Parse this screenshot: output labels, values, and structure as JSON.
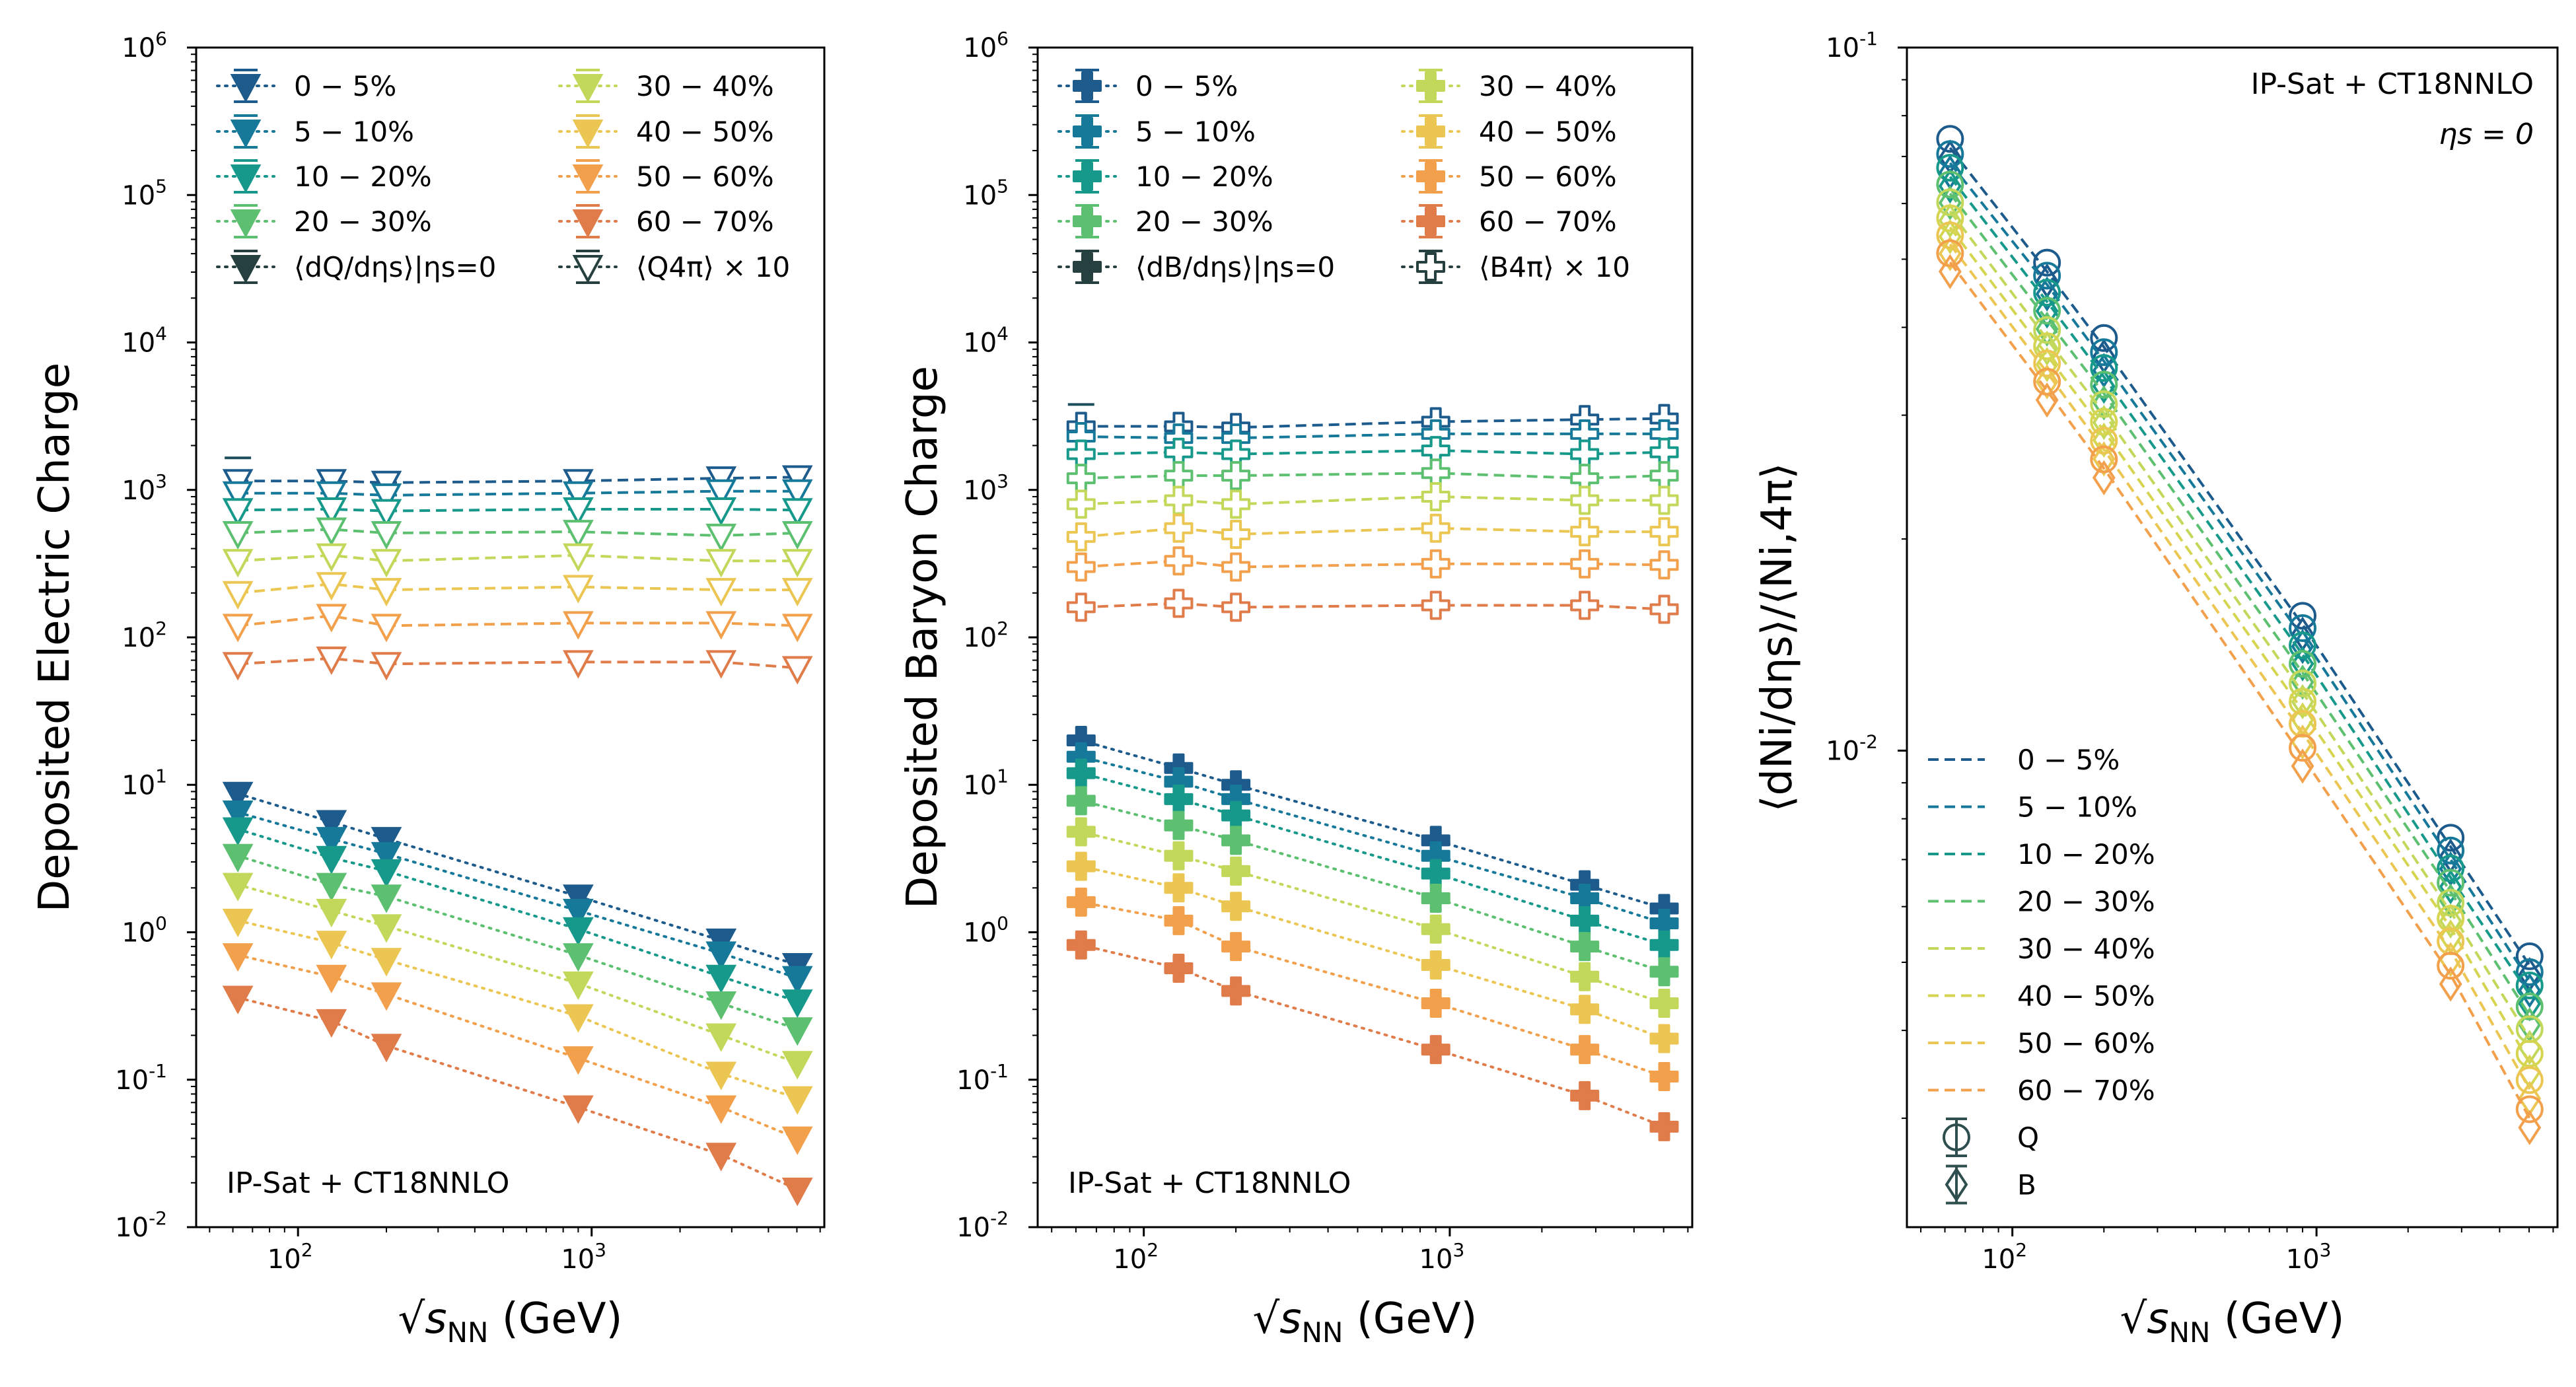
{
  "chart_data": [
    {
      "type": "line",
      "panel": "left",
      "ylabel": "Deposited Electric Charge",
      "xlabel": "√sNN (GeV)",
      "xscale": "log",
      "yscale": "log",
      "xlim": [
        45,
        6200
      ],
      "ylim": [
        0.01,
        1000000
      ],
      "annotation": "IP-Sat + CT18NNLO",
      "legend_position": "top",
      "x": [
        62.4,
        130,
        200,
        900,
        2760,
        5020
      ],
      "legend_labels": [
        "0 − 5%",
        "5 − 10%",
        "10 − 20%",
        "20 − 30%",
        "30 − 40%",
        "40 − 50%",
        "50 − 60%",
        "60 − 70%",
        "⟨dQ/dηs⟩|ηs=0",
        "⟨Q4π⟩ × 10"
      ],
      "series": [
        {
          "name": "0 − 5%",
          "color": "#1d5b8c",
          "midrap": [
            8.7,
            5.6,
            4.3,
            1.75,
            0.88,
            0.6
          ],
          "total_x10": [
            1150,
            1150,
            1120,
            1150,
            1200,
            1220
          ]
        },
        {
          "name": "5 − 10%",
          "color": "#17799a",
          "midrap": [
            6.5,
            4.3,
            3.4,
            1.4,
            0.72,
            0.49
          ],
          "total_x10": [
            950,
            950,
            920,
            950,
            980,
            980
          ]
        },
        {
          "name": "10 − 20%",
          "color": "#16998b",
          "midrap": [
            5.0,
            3.2,
            2.6,
            1.05,
            0.5,
            0.34
          ],
          "total_x10": [
            730,
            740,
            720,
            740,
            740,
            730
          ]
        },
        {
          "name": "20 − 30%",
          "color": "#5dc071",
          "midrap": [
            3.3,
            2.1,
            1.75,
            0.7,
            0.33,
            0.22
          ],
          "total_x10": [
            510,
            540,
            510,
            520,
            490,
            510
          ]
        },
        {
          "name": "30 − 40%",
          "color": "#c2d85a",
          "midrap": [
            2.1,
            1.4,
            1.1,
            0.45,
            0.2,
            0.13
          ],
          "total_x10": [
            330,
            360,
            330,
            360,
            330,
            330
          ]
        },
        {
          "name": "40 − 50%",
          "color": "#ecc652",
          "midrap": [
            1.2,
            0.85,
            0.65,
            0.27,
            0.11,
            0.075
          ],
          "total_x10": [
            200,
            230,
            210,
            220,
            210,
            210
          ]
        },
        {
          "name": "50 − 60%",
          "color": "#f2a04c",
          "midrap": [
            0.7,
            0.5,
            0.38,
            0.14,
            0.065,
            0.04
          ],
          "total_x10": [
            120,
            140,
            120,
            125,
            125,
            120
          ]
        },
        {
          "name": "60 − 70%",
          "color": "#e07b4a",
          "midrap": [
            0.36,
            0.25,
            0.17,
            0.065,
            0.031,
            0.018
          ],
          "total_x10": [
            66,
            72,
            66,
            68,
            68,
            62
          ]
        }
      ]
    },
    {
      "type": "line",
      "panel": "middle",
      "ylabel": "Deposited Baryon Charge",
      "xlabel": "√sNN (GeV)",
      "xscale": "log",
      "yscale": "log",
      "xlim": [
        45,
        6200
      ],
      "ylim": [
        0.01,
        1000000
      ],
      "annotation": "IP-Sat + CT18NNLO",
      "legend_position": "top",
      "x": [
        62.4,
        130,
        200,
        900,
        2760,
        5020
      ],
      "legend_labels": [
        "0 − 5%",
        "5 − 10%",
        "10 − 20%",
        "20 − 30%",
        "30 − 40%",
        "40 − 50%",
        "50 − 60%",
        "60 − 70%",
        "⟨dB/dηs⟩|ηs=0",
        "⟨B4π⟩ × 10"
      ],
      "series": [
        {
          "name": "0 − 5%",
          "color": "#1d5b8c",
          "midrap": [
            20,
            13,
            10,
            4.2,
            2.1,
            1.45
          ],
          "total_x10": [
            2700,
            2700,
            2650,
            2900,
            3000,
            3050
          ]
        },
        {
          "name": "5 − 10%",
          "color": "#17799a",
          "midrap": [
            15.5,
            10.5,
            8,
            3.3,
            1.7,
            1.15
          ],
          "total_x10": [
            2300,
            2250,
            2250,
            2400,
            2400,
            2400
          ]
        },
        {
          "name": "10 − 20%",
          "color": "#16998b",
          "midrap": [
            12,
            8,
            6.2,
            2.5,
            1.2,
            0.82
          ],
          "total_x10": [
            1750,
            1800,
            1750,
            1850,
            1750,
            1800
          ]
        },
        {
          "name": "20 − 30%",
          "color": "#5dc071",
          "midrap": [
            7.8,
            5.3,
            4.2,
            1.7,
            0.8,
            0.54
          ],
          "total_x10": [
            1200,
            1250,
            1250,
            1300,
            1200,
            1250
          ]
        },
        {
          "name": "30 − 40%",
          "color": "#c2d85a",
          "midrap": [
            4.8,
            3.3,
            2.6,
            1.05,
            0.5,
            0.33
          ],
          "total_x10": [
            800,
            850,
            800,
            900,
            850,
            850
          ]
        },
        {
          "name": "40 − 50%",
          "color": "#ecc652",
          "midrap": [
            2.8,
            2.0,
            1.5,
            0.6,
            0.3,
            0.19
          ],
          "total_x10": [
            480,
            550,
            500,
            550,
            520,
            520
          ]
        },
        {
          "name": "50 − 60%",
          "color": "#f2a04c",
          "midrap": [
            1.6,
            1.2,
            0.8,
            0.33,
            0.16,
            0.105
          ],
          "total_x10": [
            300,
            330,
            300,
            315,
            315,
            310
          ]
        },
        {
          "name": "60 − 70%",
          "color": "#e07b4a",
          "midrap": [
            0.82,
            0.57,
            0.4,
            0.16,
            0.078,
            0.048
          ],
          "total_x10": [
            160,
            170,
            160,
            165,
            165,
            155
          ]
        }
      ]
    },
    {
      "type": "line",
      "panel": "right",
      "ylabel": "⟨dNi/dηs⟩/⟨Ni,4π⟩",
      "xlabel": "√sNN (GeV)",
      "xscale": "log",
      "yscale": "log",
      "xlim": [
        45,
        6200
      ],
      "ylim": [
        0.0021,
        0.1
      ],
      "annotations": [
        "IP-Sat + CT18NNLO",
        "ηs = 0"
      ],
      "legend_position": "bottom-left",
      "x": [
        62.4,
        130,
        200,
        900,
        2760,
        5020
      ],
      "legend_labels": [
        "0 − 5%",
        "5 − 10%",
        "10 − 20%",
        "20 − 30%",
        "30 − 40%",
        "40 − 50%",
        "50 − 60%",
        "60 − 70%",
        "Q",
        "B"
      ],
      "series": [
        {
          "name": "0 − 5%",
          "color": "#1d5b8c",
          "values": [
            0.072,
            0.048,
            0.0375,
            0.0151,
            0.0073,
            0.00495
          ]
        },
        {
          "name": "5 − 10%",
          "color": "#17799a",
          "values": [
            0.0685,
            0.046,
            0.0358,
            0.0145,
            0.007,
            0.0047
          ]
        },
        {
          "name": "10 − 20%",
          "color": "#16998b",
          "values": [
            0.0655,
            0.0435,
            0.034,
            0.0137,
            0.0066,
            0.0045
          ]
        },
        {
          "name": "20 − 30%",
          "color": "#5dc071",
          "values": [
            0.062,
            0.041,
            0.0322,
            0.0129,
            0.0063,
            0.0042
          ]
        },
        {
          "name": "30 − 40%",
          "color": "#c2d85a",
          "values": [
            0.0585,
            0.0385,
            0.0302,
            0.0121,
            0.0059,
            0.0039
          ]
        },
        {
          "name": "40 − 50%",
          "color": "#d6d552",
          "values": [
            0.0555,
            0.0365,
            0.0285,
            0.0114,
            0.0056,
            0.0036
          ]
        },
        {
          "name": "50 − 60%",
          "color": "#ecc652",
          "values": [
            0.0525,
            0.0345,
            0.0268,
            0.0106,
            0.0052,
            0.0033
          ]
        },
        {
          "name": "60 − 70%",
          "color": "#f2a04c",
          "values": [
            0.0495,
            0.0325,
            0.0252,
            0.0098,
            0.0048,
            0.003
          ]
        }
      ]
    }
  ]
}
